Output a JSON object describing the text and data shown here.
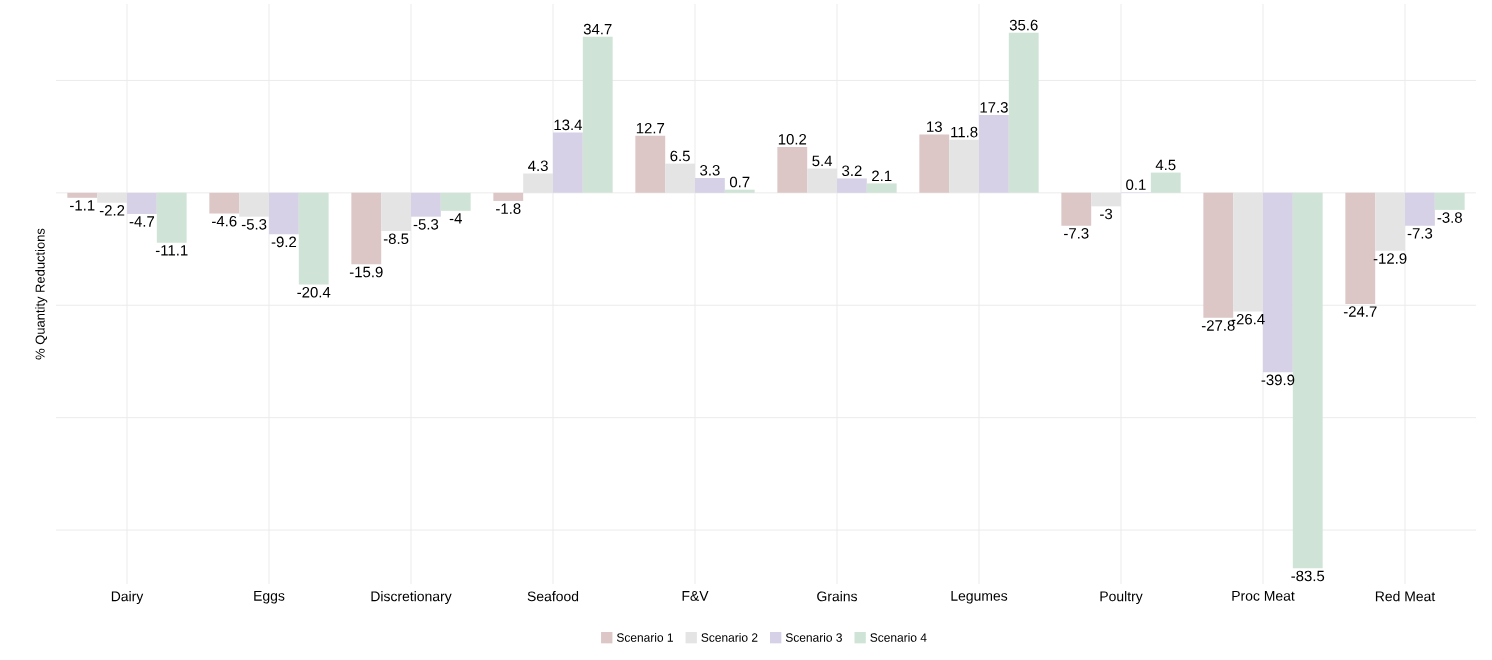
{
  "chart_data": {
    "type": "bar",
    "ylabel": "% Quantity Reductions",
    "categories": [
      "Dairy",
      "Eggs",
      "Discretionary",
      "Seafood",
      "F&V",
      "Grains",
      "Legumes",
      "Poultry",
      "Proc Meat",
      "Red Meat"
    ],
    "series": [
      {
        "name": "Scenario 1",
        "color": "#dcc6c6",
        "values": [
          -1.1,
          -4.6,
          -15.9,
          -1.8,
          12.7,
          10.2,
          13,
          -7.3,
          -27.8,
          -24.7
        ]
      },
      {
        "name": "Scenario 2",
        "color": "#e4e4e4",
        "values": [
          -2.2,
          -5.3,
          -8.5,
          4.3,
          6.5,
          5.4,
          11.8,
          -3,
          -26.4,
          -12.9
        ]
      },
      {
        "name": "Scenario 3",
        "color": "#d6d1e6",
        "values": [
          -4.7,
          -9.2,
          -5.3,
          13.4,
          3.3,
          3.2,
          17.3,
          0.1,
          -39.9,
          -7.3
        ]
      },
      {
        "name": "Scenario 4",
        "color": "#cfe4d6",
        "values": [
          -11.1,
          -20.4,
          -4,
          34.7,
          0.7,
          2.1,
          35.6,
          4.5,
          -83.5,
          -3.8
        ]
      }
    ],
    "ylim": [
      -87,
      42
    ],
    "yticks": [
      {
        "value": -75,
        "label": null
      },
      {
        "value": -50,
        "label": null
      },
      {
        "value": -25,
        "label": null
      },
      {
        "value": 0,
        "label": null
      },
      {
        "value": 25,
        "label": null
      }
    ],
    "tick_labels": "x",
    "data_labels": true,
    "grid": true,
    "legend": "bottom"
  }
}
